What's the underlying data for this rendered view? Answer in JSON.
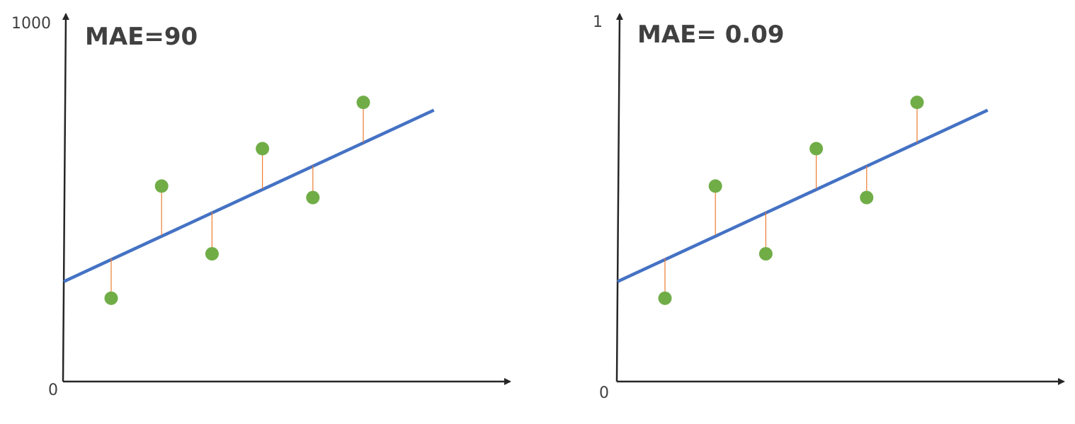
{
  "colors": {
    "axis": "#262626",
    "fit_line": "#4472c4",
    "point": "#70ad47",
    "residual": "#ed7d31",
    "text": "#404040"
  },
  "chart_data": [
    {
      "type": "scatter",
      "title": "MAE=90",
      "ylim": [
        0,
        1000
      ],
      "y_tick_labels": {
        "bottom": "0",
        "top": "1000"
      },
      "grid": false,
      "points": [
        {
          "x": 1,
          "y": 225
        },
        {
          "x": 2,
          "y": 528
        },
        {
          "x": 3,
          "y": 345
        },
        {
          "x": 4,
          "y": 629
        },
        {
          "x": 5,
          "y": 497
        },
        {
          "x": 6,
          "y": 754
        }
      ],
      "fit_line": {
        "x0": 0,
        "y0": 270,
        "x1": 7.4,
        "y1": 733
      }
    },
    {
      "type": "scatter",
      "title": "MAE= 0.09",
      "ylim": [
        0,
        1
      ],
      "y_tick_labels": {
        "bottom": "0",
        "top": "1"
      },
      "grid": false,
      "points": [
        {
          "x": 1,
          "y": 0.225
        },
        {
          "x": 2,
          "y": 0.528
        },
        {
          "x": 3,
          "y": 0.345
        },
        {
          "x": 4,
          "y": 0.629
        },
        {
          "x": 5,
          "y": 0.497
        },
        {
          "x": 6,
          "y": 0.754
        }
      ],
      "fit_line": {
        "x0": 0,
        "y0": 0.27,
        "x1": 7.4,
        "y1": 0.733
      }
    }
  ]
}
